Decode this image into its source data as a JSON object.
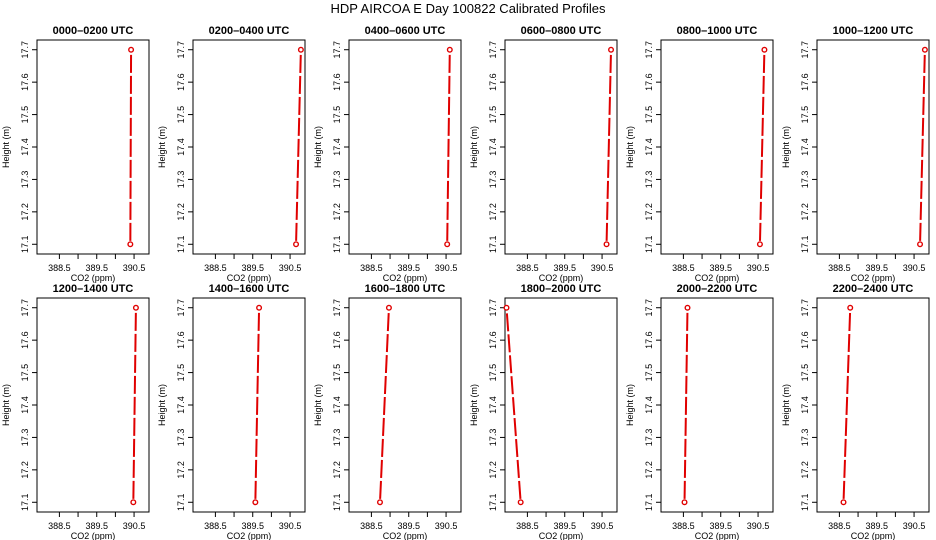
{
  "title": "HDP AIRCOA E  Day 100822  Calibrated Profiles",
  "axes": {
    "xlabel": "CO2 (ppm)",
    "ylabel": "Height (m)",
    "xlim": [
      387.9,
      390.9
    ],
    "ylim": [
      17.07,
      17.73
    ],
    "x_ticks": [
      388.5,
      389.5,
      390.5
    ],
    "x_minor_ticks": [
      389.0,
      390.0
    ],
    "y_ticks": [
      17.1,
      17.2,
      17.3,
      17.4,
      17.5,
      17.6,
      17.7
    ],
    "y_tick_labels": [
      "17.1",
      "17.2",
      "17.3",
      "17.4",
      "17.5",
      "17.6",
      "17.7"
    ],
    "x_tick_labels": [
      "388.5",
      "389.5",
      "390.5"
    ]
  },
  "chart_data": [
    {
      "type": "line",
      "title": "0000–0200 UTC",
      "series": [
        {
          "x": [
            390.4,
            390.42
          ],
          "y": [
            17.1,
            17.7
          ],
          "color": "#e00000"
        }
      ]
    },
    {
      "type": "line",
      "title": "0200–0400 UTC",
      "series": [
        {
          "x": [
            390.66,
            390.79
          ],
          "y": [
            17.1,
            17.7
          ],
          "color": "#e00000"
        }
      ]
    },
    {
      "type": "line",
      "title": "0400–0600 UTC",
      "series": [
        {
          "x": [
            390.53,
            390.6
          ],
          "y": [
            17.1,
            17.7
          ],
          "color": "#e00000"
        }
      ]
    },
    {
      "type": "line",
      "title": "0600–0800 UTC",
      "series": [
        {
          "x": [
            390.62,
            390.74
          ],
          "y": [
            17.1,
            17.7
          ],
          "color": "#e00000"
        }
      ]
    },
    {
      "type": "line",
      "title": "0800–1000 UTC",
      "series": [
        {
          "x": [
            390.55,
            390.67
          ],
          "y": [
            17.1,
            17.7
          ],
          "color": "#e00000"
        }
      ]
    },
    {
      "type": "line",
      "title": "1000–1200 UTC",
      "series": [
        {
          "x": [
            390.66,
            390.79
          ],
          "y": [
            17.1,
            17.7
          ],
          "color": "#e00000"
        }
      ]
    },
    {
      "type": "line",
      "title": "1200–1400 UTC",
      "series": [
        {
          "x": [
            390.48,
            390.55
          ],
          "y": [
            17.1,
            17.7
          ],
          "color": "#e00000"
        }
      ]
    },
    {
      "type": "line",
      "title": "1400–1600 UTC",
      "series": [
        {
          "x": [
            389.57,
            389.67
          ],
          "y": [
            17.1,
            17.7
          ],
          "color": "#e00000"
        }
      ]
    },
    {
      "type": "line",
      "title": "1600–1800 UTC",
      "series": [
        {
          "x": [
            388.73,
            388.97
          ],
          "y": [
            17.1,
            17.7
          ],
          "color": "#e00000"
        }
      ]
    },
    {
      "type": "line",
      "title": "1800–2000 UTC",
      "series": [
        {
          "x": [
            388.32,
            387.94
          ],
          "y": [
            17.1,
            17.7
          ],
          "color": "#e00000"
        }
      ]
    },
    {
      "type": "line",
      "title": "2000–2200 UTC",
      "series": [
        {
          "x": [
            388.53,
            388.61
          ],
          "y": [
            17.1,
            17.7
          ],
          "color": "#e00000"
        }
      ]
    },
    {
      "type": "line",
      "title": "2200–2400 UTC",
      "series": [
        {
          "x": [
            388.61,
            388.79
          ],
          "y": [
            17.1,
            17.7
          ],
          "color": "#e00000"
        }
      ]
    }
  ]
}
